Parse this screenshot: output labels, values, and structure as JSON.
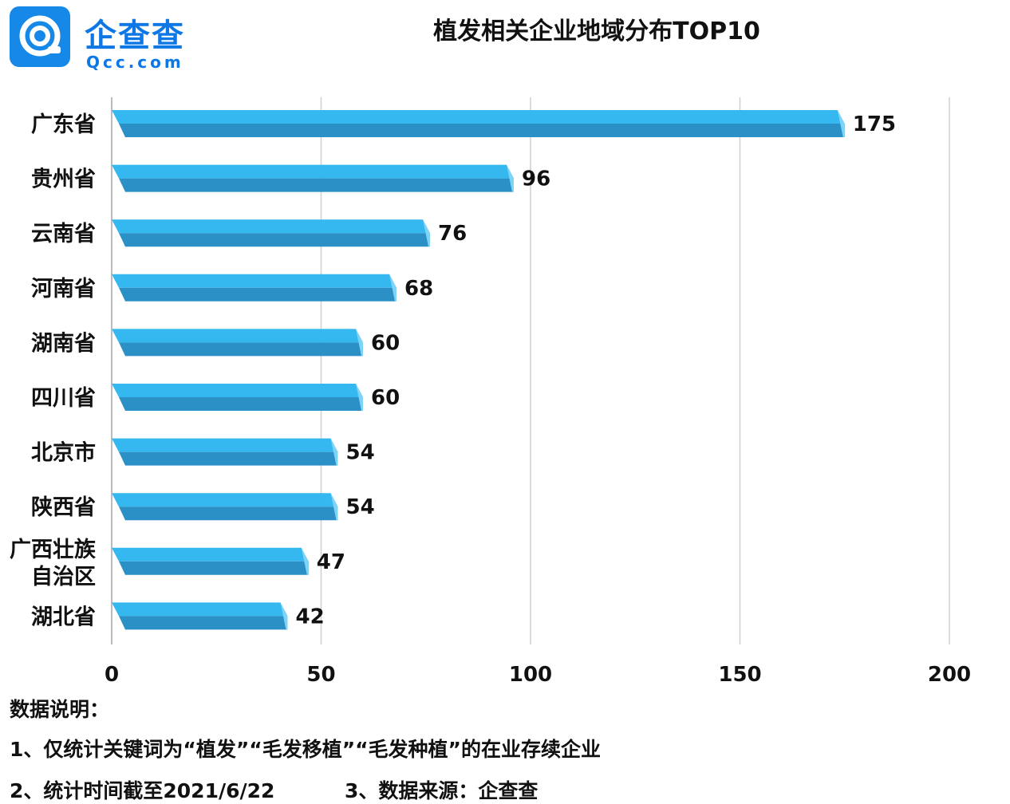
{
  "brand": {
    "name_cn": "企查查",
    "name_en": "Qcc.com",
    "color": "#0d77e6"
  },
  "chart_data": {
    "type": "bar",
    "orientation": "horizontal",
    "title": "植发相关企业地域分布TOP10",
    "categories": [
      "广东省",
      "贵州省",
      "云南省",
      "河南省",
      "湖南省",
      "四川省",
      "北京市",
      "陕西省",
      "广西壮族\n自治区",
      "湖北省"
    ],
    "values": [
      175,
      96,
      76,
      68,
      60,
      60,
      54,
      54,
      47,
      42
    ],
    "xlim": [
      0,
      200
    ],
    "xticks": [
      0,
      50,
      100,
      150,
      200
    ],
    "grid": true,
    "legend": "none",
    "colors": {
      "bar_top": "#35b8f0",
      "bar_bottom": "#2a90c6",
      "bar_edge": "#7fd3f7",
      "grid": "#d0d0d0"
    }
  },
  "notes": {
    "heading": "数据说明：",
    "line1": "1、仅统计关键词为“植发”“毛发移植”“毛发种植”的在业存续企业",
    "line2": "2、统计时间截至2021/6/22",
    "line3": "3、数据来源：企查查"
  }
}
